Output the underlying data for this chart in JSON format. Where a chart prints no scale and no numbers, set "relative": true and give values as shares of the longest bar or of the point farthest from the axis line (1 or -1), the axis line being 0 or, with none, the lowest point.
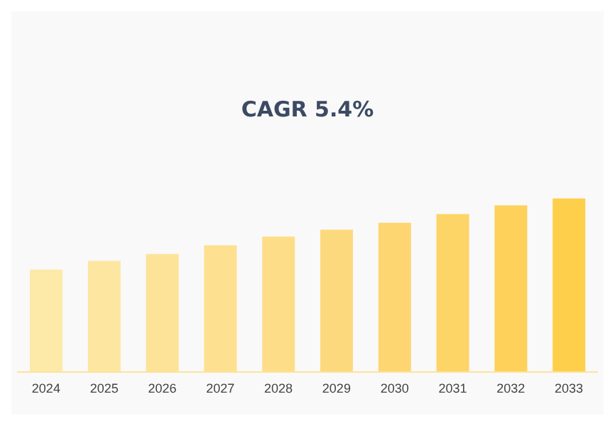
{
  "chart_data": {
    "type": "bar",
    "title": "CAGR 5.4%",
    "relative": true,
    "categories": [
      "2024",
      "2025",
      "2026",
      "2027",
      "2028",
      "2029",
      "2030",
      "2031",
      "2032",
      "2033"
    ],
    "values": [
      0.59,
      0.64,
      0.68,
      0.73,
      0.78,
      0.82,
      0.86,
      0.91,
      0.96,
      1
    ],
    "colors": [
      "#fde9a8",
      "#fde6a0",
      "#fde398",
      "#fde090",
      "#fddd88",
      "#fdd97e",
      "#fdd672",
      "#fdd466",
      "#fdd15a",
      "#fecf4a"
    ],
    "orientation": "vertical"
  }
}
